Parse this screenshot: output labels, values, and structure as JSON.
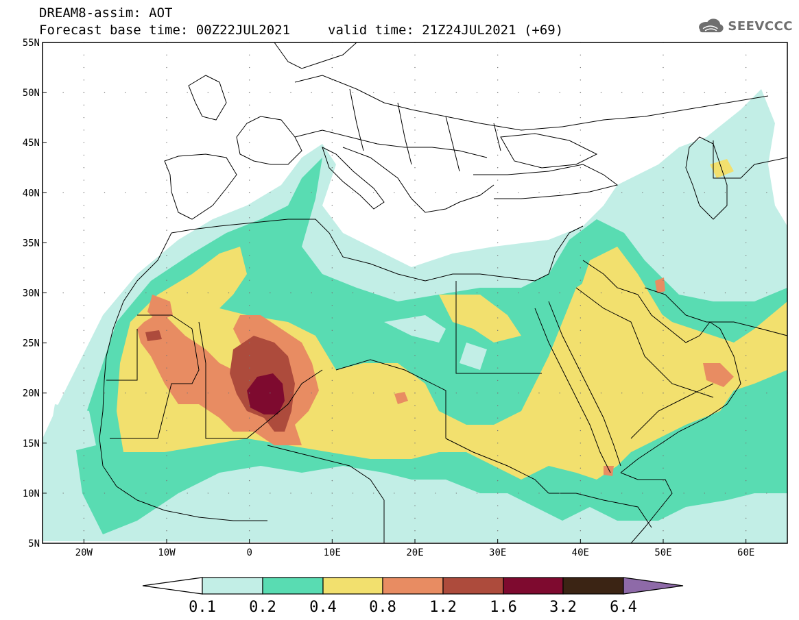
{
  "header": {
    "title_line1": "DREAM8-assim: AOT",
    "title_line2": "Forecast base time: 00Z22JUL2021",
    "valid_time": "valid time: 21Z24JUL2021 (+69)"
  },
  "logo": {
    "text": "SEEVCCC",
    "icon": "cloud-logo-icon"
  },
  "map": {
    "lat_labels": [
      "55N",
      "50N",
      "45N",
      "40N",
      "35N",
      "30N",
      "25N",
      "20N",
      "15N",
      "10N",
      "5N"
    ],
    "lon_labels": [
      "20W",
      "10W",
      "0",
      "10E",
      "20E",
      "30E",
      "40E",
      "50E",
      "60E"
    ]
  },
  "colorbar": {
    "labels": [
      "0.1",
      "0.2",
      "0.4",
      "0.8",
      "1.2",
      "1.6",
      "3.2",
      "6.4"
    ],
    "colors": [
      "#ffffff",
      "#c2eee6",
      "#59dcb2",
      "#f2e06e",
      "#e88c62",
      "#ad4b3c",
      "#7e0a2f",
      "#3b2414",
      "#8e6aa8"
    ]
  }
}
